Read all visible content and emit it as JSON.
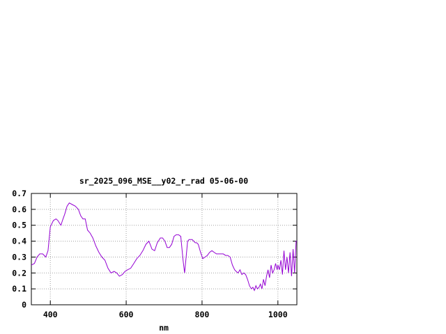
{
  "chart_data": {
    "type": "line",
    "title": "sr_2025_096_MSE__y02_r_rad 05-06-00",
    "xlabel": "nm",
    "ylabel": "",
    "xlim": [
      350,
      1050
    ],
    "ylim": [
      0,
      0.7
    ],
    "xticks": [
      400,
      600,
      800,
      1000
    ],
    "xtick_labels": [
      "400",
      "600",
      "800",
      "1000"
    ],
    "yticks": [
      0,
      0.1,
      0.2,
      0.3,
      0.4,
      0.5,
      0.6,
      0.7
    ],
    "ytick_labels": [
      "0",
      "0.1",
      "0.2",
      "0.3",
      "0.4",
      "0.5",
      "0.6",
      "0.7"
    ],
    "grid": true,
    "legend": "none",
    "series": [
      {
        "color": "#9400d3",
        "x": [
          350,
          358,
          365,
          372,
          380,
          388,
          394,
          400,
          408,
          415,
          420,
          425,
          428,
          432,
          438,
          444,
          450,
          458,
          466,
          474,
          480,
          486,
          492,
          498,
          505,
          512,
          520,
          528,
          536,
          544,
          552,
          560,
          568,
          575,
          582,
          590,
          597,
          604,
          612,
          620,
          628,
          636,
          644,
          652,
          660,
          668,
          675,
          682,
          690,
          696,
          702,
          708,
          714,
          720,
          726,
          732,
          738,
          744,
          750,
          754,
          758,
          762,
          766,
          770,
          774,
          778,
          782,
          786,
          790,
          796,
          802,
          808,
          814,
          820,
          826,
          832,
          838,
          844,
          850,
          856,
          862,
          868,
          874,
          880,
          886,
          890,
          895,
          900,
          905,
          910,
          915,
          920,
          925,
          930,
          934,
          938,
          942,
          946,
          950,
          954,
          958,
          962,
          966,
          970,
          974,
          978,
          982,
          986,
          990,
          994,
          998,
          1000,
          1004,
          1008,
          1012,
          1016,
          1020,
          1024,
          1028,
          1032,
          1036,
          1040,
          1044,
          1048,
          1050
        ],
        "y": [
          0.25,
          0.26,
          0.3,
          0.32,
          0.32,
          0.3,
          0.34,
          0.49,
          0.53,
          0.54,
          0.53,
          0.51,
          0.5,
          0.53,
          0.57,
          0.62,
          0.64,
          0.63,
          0.62,
          0.6,
          0.56,
          0.54,
          0.54,
          0.47,
          0.45,
          0.42,
          0.37,
          0.33,
          0.3,
          0.28,
          0.23,
          0.2,
          0.21,
          0.2,
          0.18,
          0.19,
          0.21,
          0.22,
          0.23,
          0.26,
          0.29,
          0.31,
          0.34,
          0.38,
          0.4,
          0.35,
          0.34,
          0.39,
          0.42,
          0.42,
          0.4,
          0.36,
          0.36,
          0.38,
          0.43,
          0.44,
          0.44,
          0.43,
          0.28,
          0.2,
          0.3,
          0.4,
          0.41,
          0.41,
          0.41,
          0.4,
          0.39,
          0.39,
          0.38,
          0.33,
          0.29,
          0.3,
          0.31,
          0.33,
          0.34,
          0.33,
          0.32,
          0.32,
          0.32,
          0.32,
          0.31,
          0.31,
          0.3,
          0.25,
          0.22,
          0.21,
          0.2,
          0.22,
          0.19,
          0.2,
          0.19,
          0.16,
          0.12,
          0.1,
          0.11,
          0.09,
          0.12,
          0.1,
          0.11,
          0.13,
          0.1,
          0.16,
          0.12,
          0.18,
          0.22,
          0.17,
          0.25,
          0.2,
          0.22,
          0.26,
          0.22,
          0.25,
          0.22,
          0.28,
          0.19,
          0.34,
          0.22,
          0.3,
          0.2,
          0.33,
          0.18,
          0.35,
          0.2,
          0.4,
          0.4
        ]
      }
    ]
  }
}
